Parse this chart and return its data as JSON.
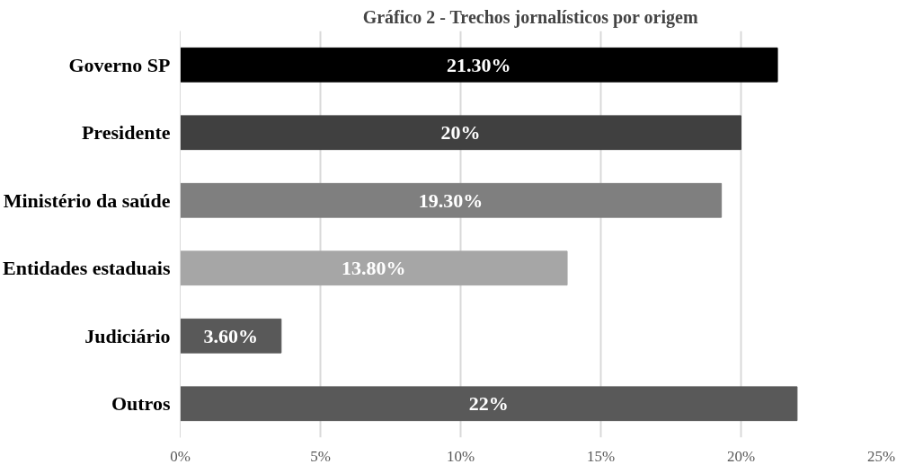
{
  "chart_data": {
    "type": "bar",
    "orientation": "horizontal",
    "title": "Gráfico 2 - Trechos jornalísticos por origem",
    "categories": [
      "Governo SP",
      "Presidente",
      "Ministério da saúde",
      "Entidades estaduais",
      "Judiciário",
      "Outros"
    ],
    "values": [
      21.3,
      20,
      19.3,
      13.8,
      3.6,
      22
    ],
    "colors": [
      "#000000",
      "#404040",
      "#7f7f7f",
      "#a6a6a6",
      "#595959",
      "#595959"
    ],
    "value_labels": [
      "21.30%",
      "20%",
      "19.30%",
      "13.80%",
      "3.60%",
      "22%"
    ],
    "xlim": [
      0,
      25
    ],
    "xticks": [
      {
        "value": 0,
        "label": "0%"
      },
      {
        "value": 5,
        "label": "5%"
      },
      {
        "value": 10,
        "label": "10%"
      },
      {
        "value": 15,
        "label": "15%"
      },
      {
        "value": 20,
        "label": "20%"
      },
      {
        "value": 25,
        "label": "25%"
      }
    ],
    "grid": "x"
  }
}
